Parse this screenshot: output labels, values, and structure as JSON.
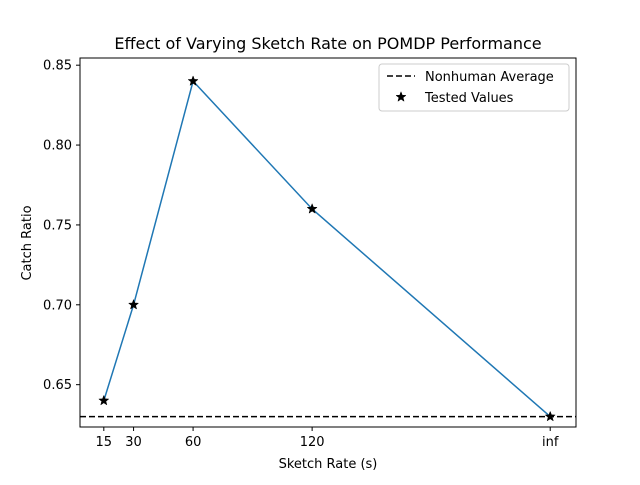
{
  "chart_data": {
    "type": "line",
    "title": "Effect of Varying Sketch Rate on POMDP Performance",
    "xlabel": "Sketch Rate (s)",
    "ylabel": "Catch Ratio",
    "x_ticks": [
      {
        "pos": 15,
        "label": "15"
      },
      {
        "pos": 30,
        "label": "30"
      },
      {
        "pos": 60,
        "label": "60"
      },
      {
        "pos": 120,
        "label": "120"
      },
      {
        "pos": 240,
        "label": "inf"
      }
    ],
    "y_ticks": [
      "0.65",
      "0.70",
      "0.75",
      "0.80",
      "0.85"
    ],
    "xlim": [
      3,
      253
    ],
    "ylim": [
      0.6235,
      0.8545
    ],
    "series": [
      {
        "name": "",
        "kind": "line",
        "color": "#1f77b4",
        "x": [
          15,
          30,
          60,
          120,
          240
        ],
        "y": [
          0.64,
          0.7,
          0.84,
          0.76,
          0.63
        ]
      },
      {
        "name": "Tested Values",
        "kind": "scatter",
        "marker": "star",
        "color": "#000000",
        "x": [
          15,
          30,
          60,
          120,
          240
        ],
        "y": [
          0.64,
          0.7,
          0.84,
          0.76,
          0.63
        ]
      }
    ],
    "reference_lines": [
      {
        "name": "Nonhuman Average",
        "orientation": "horizontal",
        "y": 0.63,
        "style": "dashed",
        "color": "#000000"
      }
    ],
    "legend": {
      "placement": "top-right",
      "entries": [
        "Nonhuman Average",
        "Tested Values"
      ]
    },
    "grid": false
  }
}
